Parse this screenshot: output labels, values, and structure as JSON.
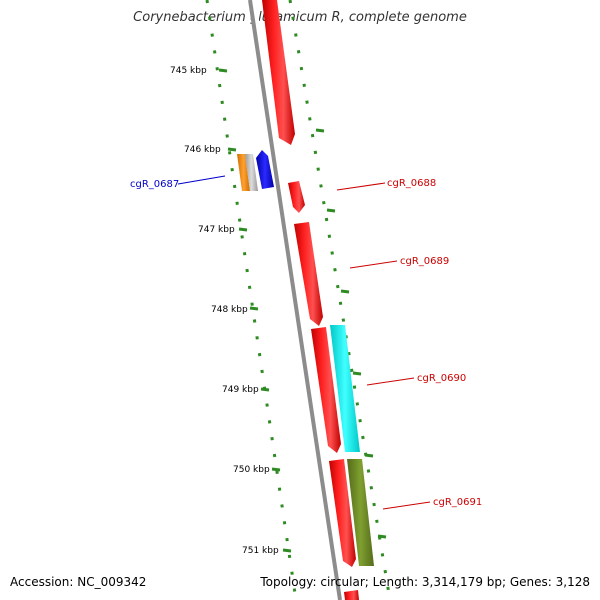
{
  "title": "Corynebacterium glutamicum R, complete genome",
  "footer": {
    "accession": "Accession: NC_009342",
    "summary": "Topology: circular; Length: 3,314,179 bp; Genes: 3,128"
  },
  "ticks": [
    "745 kbp",
    "746 kbp",
    "747 kbp",
    "748 kbp",
    "749 kbp",
    "750 kbp",
    "751 kbp"
  ],
  "genes": [
    {
      "label": "cgR_0687",
      "color": "#0000cc"
    },
    {
      "label": "cgR_0688",
      "color": "#cc0000"
    },
    {
      "label": "cgR_0689",
      "color": "#cc0000"
    },
    {
      "label": "cgR_0690",
      "color": "#cc0000"
    },
    {
      "label": "cgR_0691",
      "color": "#cc0000"
    }
  ],
  "colors": {
    "backbone": "#8c8c8c",
    "cds_red": "#ff0000",
    "blue": "#0000ff",
    "orange": "#ff8c00",
    "grey": "#b4b4b4",
    "cyan": "#00ffff",
    "olive": "#6b8e23",
    "tick_green": "#2e8b22"
  }
}
